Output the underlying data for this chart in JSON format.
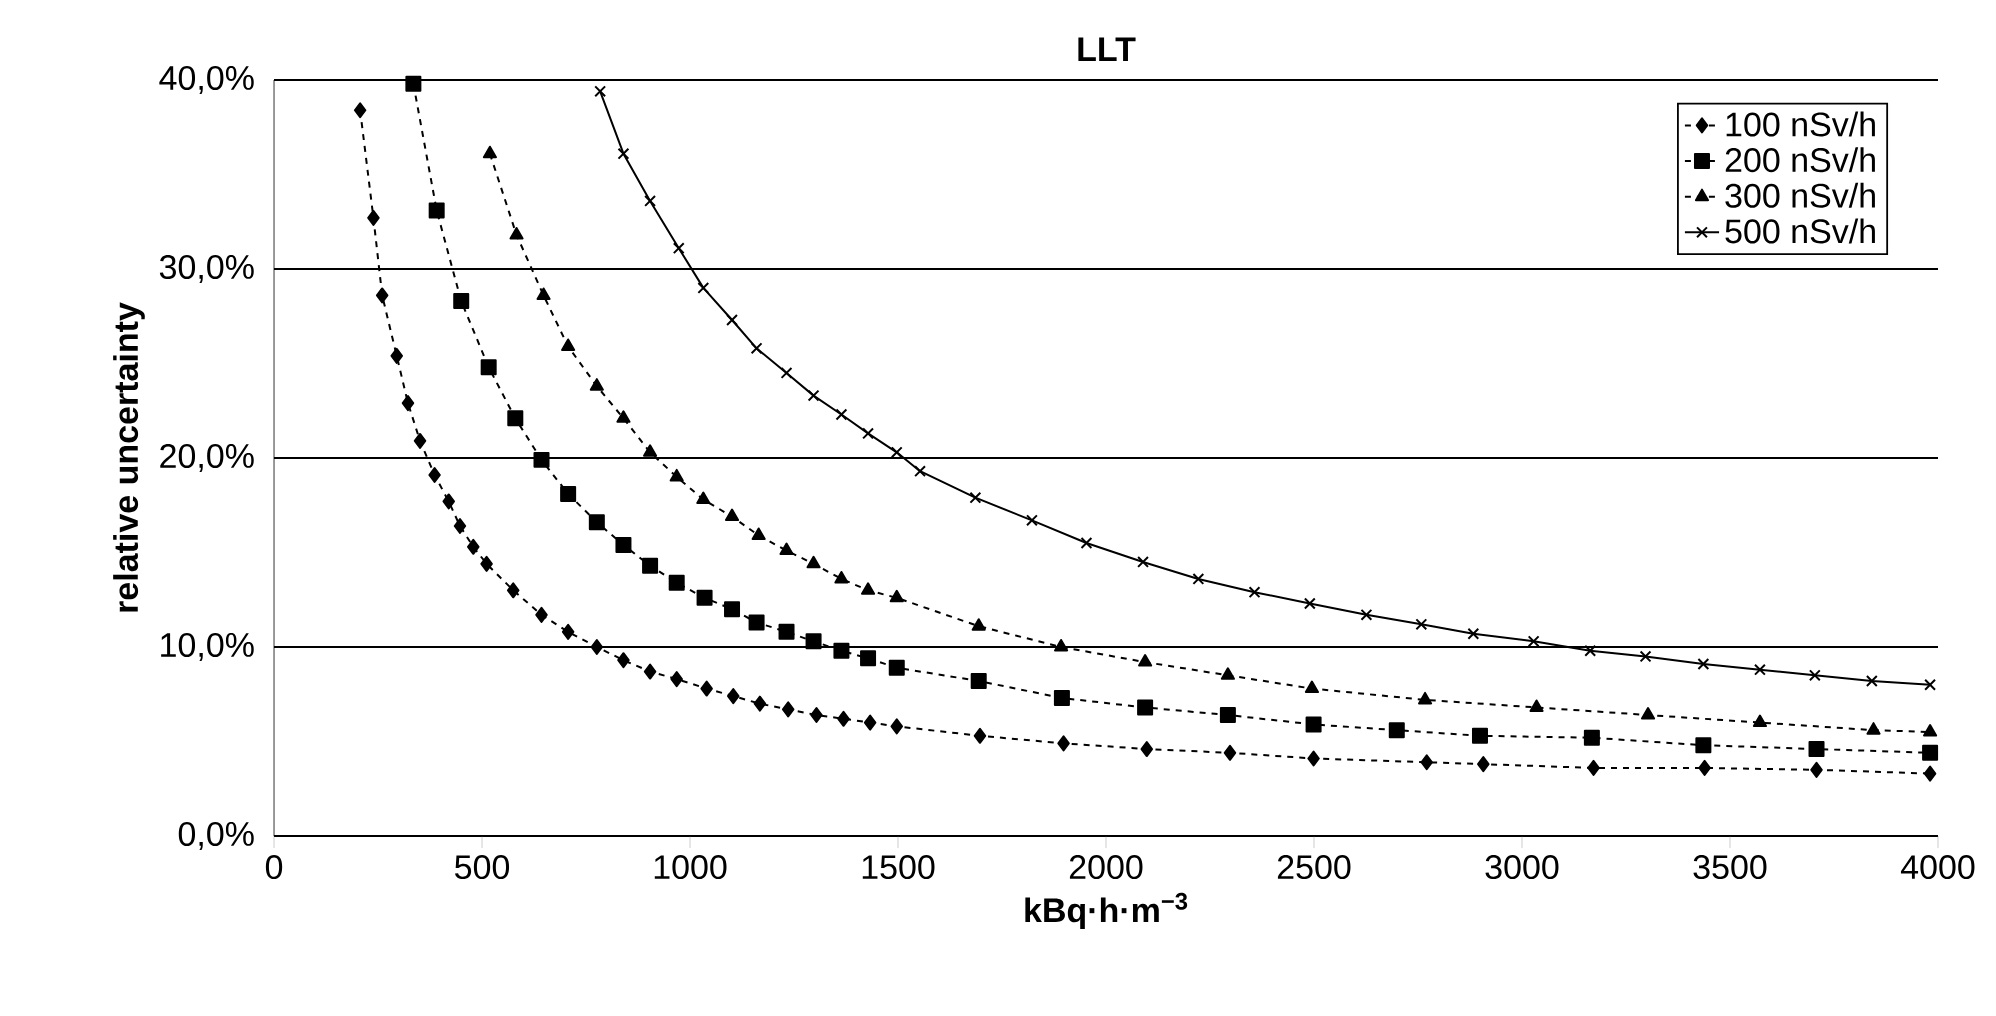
{
  "chart_data": {
    "type": "line",
    "title": "LLT",
    "xlabel": "kBq·h·m$^{−3}$",
    "ylabel": "relative uncertainty",
    "xlim": [
      0,
      4000
    ],
    "xticks": [
      0,
      500,
      1000,
      1500,
      2000,
      2500,
      3000,
      3500,
      4000
    ],
    "ylim": [
      0,
      40
    ],
    "yticks": [
      {
        "value": 0,
        "label": "0,0%"
      },
      {
        "value": 10,
        "label": "10,0%"
      },
      {
        "value": 20,
        "label": "20,0%"
      },
      {
        "value": 30,
        "label": "30,0%"
      },
      {
        "value": 40,
        "label": "40,0%"
      }
    ],
    "grid": "y",
    "legend": "top right",
    "series": [
      {
        "name": "100 nSv/h",
        "color": "#000000",
        "marker": "diamond",
        "line_style": "dashed",
        "x": [
          207,
          239,
          260,
          295,
          322,
          351,
          386,
          420,
          447,
          479,
          511,
          575,
          643,
          707,
          776,
          840,
          904,
          968,
          1040,
          1104,
          1168,
          1236,
          1304,
          1369,
          1433,
          1497,
          1697,
          1898,
          2098,
          2298,
          2499,
          2771,
          2907,
          3172,
          3439,
          3708,
          3981
        ],
        "values": [
          38.4,
          32.7,
          28.6,
          25.4,
          22.9,
          20.9,
          19.1,
          17.7,
          16.4,
          15.3,
          14.4,
          13.0,
          11.7,
          10.8,
          10.0,
          9.3,
          8.7,
          8.3,
          7.8,
          7.4,
          7.0,
          6.7,
          6.4,
          6.2,
          6.0,
          5.8,
          5.3,
          4.9,
          4.6,
          4.4,
          4.1,
          3.9,
          3.8,
          3.6,
          3.6,
          3.5,
          3.3
        ]
      },
      {
        "name": "200 nSv/h",
        "color": "#000000",
        "marker": "square",
        "line_style": "dashed",
        "x": [
          335,
          391,
          450,
          516,
          580,
          643,
          707,
          776,
          840,
          904,
          968,
          1035,
          1101,
          1160,
          1232,
          1297,
          1364,
          1428,
          1497,
          1694,
          1894,
          2094,
          2293,
          2499,
          2699,
          2899,
          3168,
          3436,
          3708,
          3981
        ],
        "values": [
          39.8,
          33.1,
          28.3,
          24.8,
          22.1,
          19.9,
          18.1,
          16.6,
          15.4,
          14.3,
          13.4,
          12.6,
          12.0,
          11.3,
          10.8,
          10.3,
          9.8,
          9.4,
          8.9,
          8.2,
          7.3,
          6.8,
          6.4,
          5.9,
          5.6,
          5.3,
          5.2,
          4.8,
          4.6,
          4.4
        ]
      },
      {
        "name": "300 nSv/h",
        "color": "#000000",
        "marker": "triangle",
        "line_style": "dashed",
        "x": [
          519,
          583,
          648,
          707,
          776,
          840,
          904,
          968,
          1032,
          1101,
          1165,
          1232,
          1297,
          1364,
          1428,
          1497,
          1694,
          1892,
          2094,
          2293,
          2495,
          2767,
          3035,
          3303,
          3572,
          3845,
          3981
        ],
        "values": [
          36.1,
          31.8,
          28.6,
          25.9,
          23.8,
          22.1,
          20.3,
          19.0,
          17.8,
          16.9,
          15.9,
          15.1,
          14.4,
          13.6,
          13.0,
          12.6,
          11.1,
          10.0,
          9.2,
          8.5,
          7.8,
          7.2,
          6.8,
          6.4,
          6.0,
          5.6,
          5.5
        ]
      },
      {
        "name": "500 nSv/h",
        "color": "#000000",
        "marker": "cross",
        "line_style": "solid",
        "x": [
          784,
          840,
          904,
          973,
          1032,
          1101,
          1160,
          1232,
          1297,
          1364,
          1428,
          1497,
          1553,
          1686,
          1822,
          1953,
          2089,
          2222,
          2357,
          2490,
          2626,
          2758,
          2883,
          3028,
          3164,
          3297,
          3436,
          3572,
          3704,
          3841,
          3981
        ],
        "values": [
          39.4,
          36.1,
          33.6,
          31.1,
          29.0,
          27.3,
          25.8,
          24.5,
          23.3,
          22.3,
          21.3,
          20.3,
          19.3,
          17.9,
          16.7,
          15.5,
          14.5,
          13.6,
          12.9,
          12.3,
          11.7,
          11.2,
          10.7,
          10.3,
          9.8,
          9.5,
          9.1,
          8.8,
          8.5,
          8.2,
          8.0
        ]
      }
    ]
  }
}
